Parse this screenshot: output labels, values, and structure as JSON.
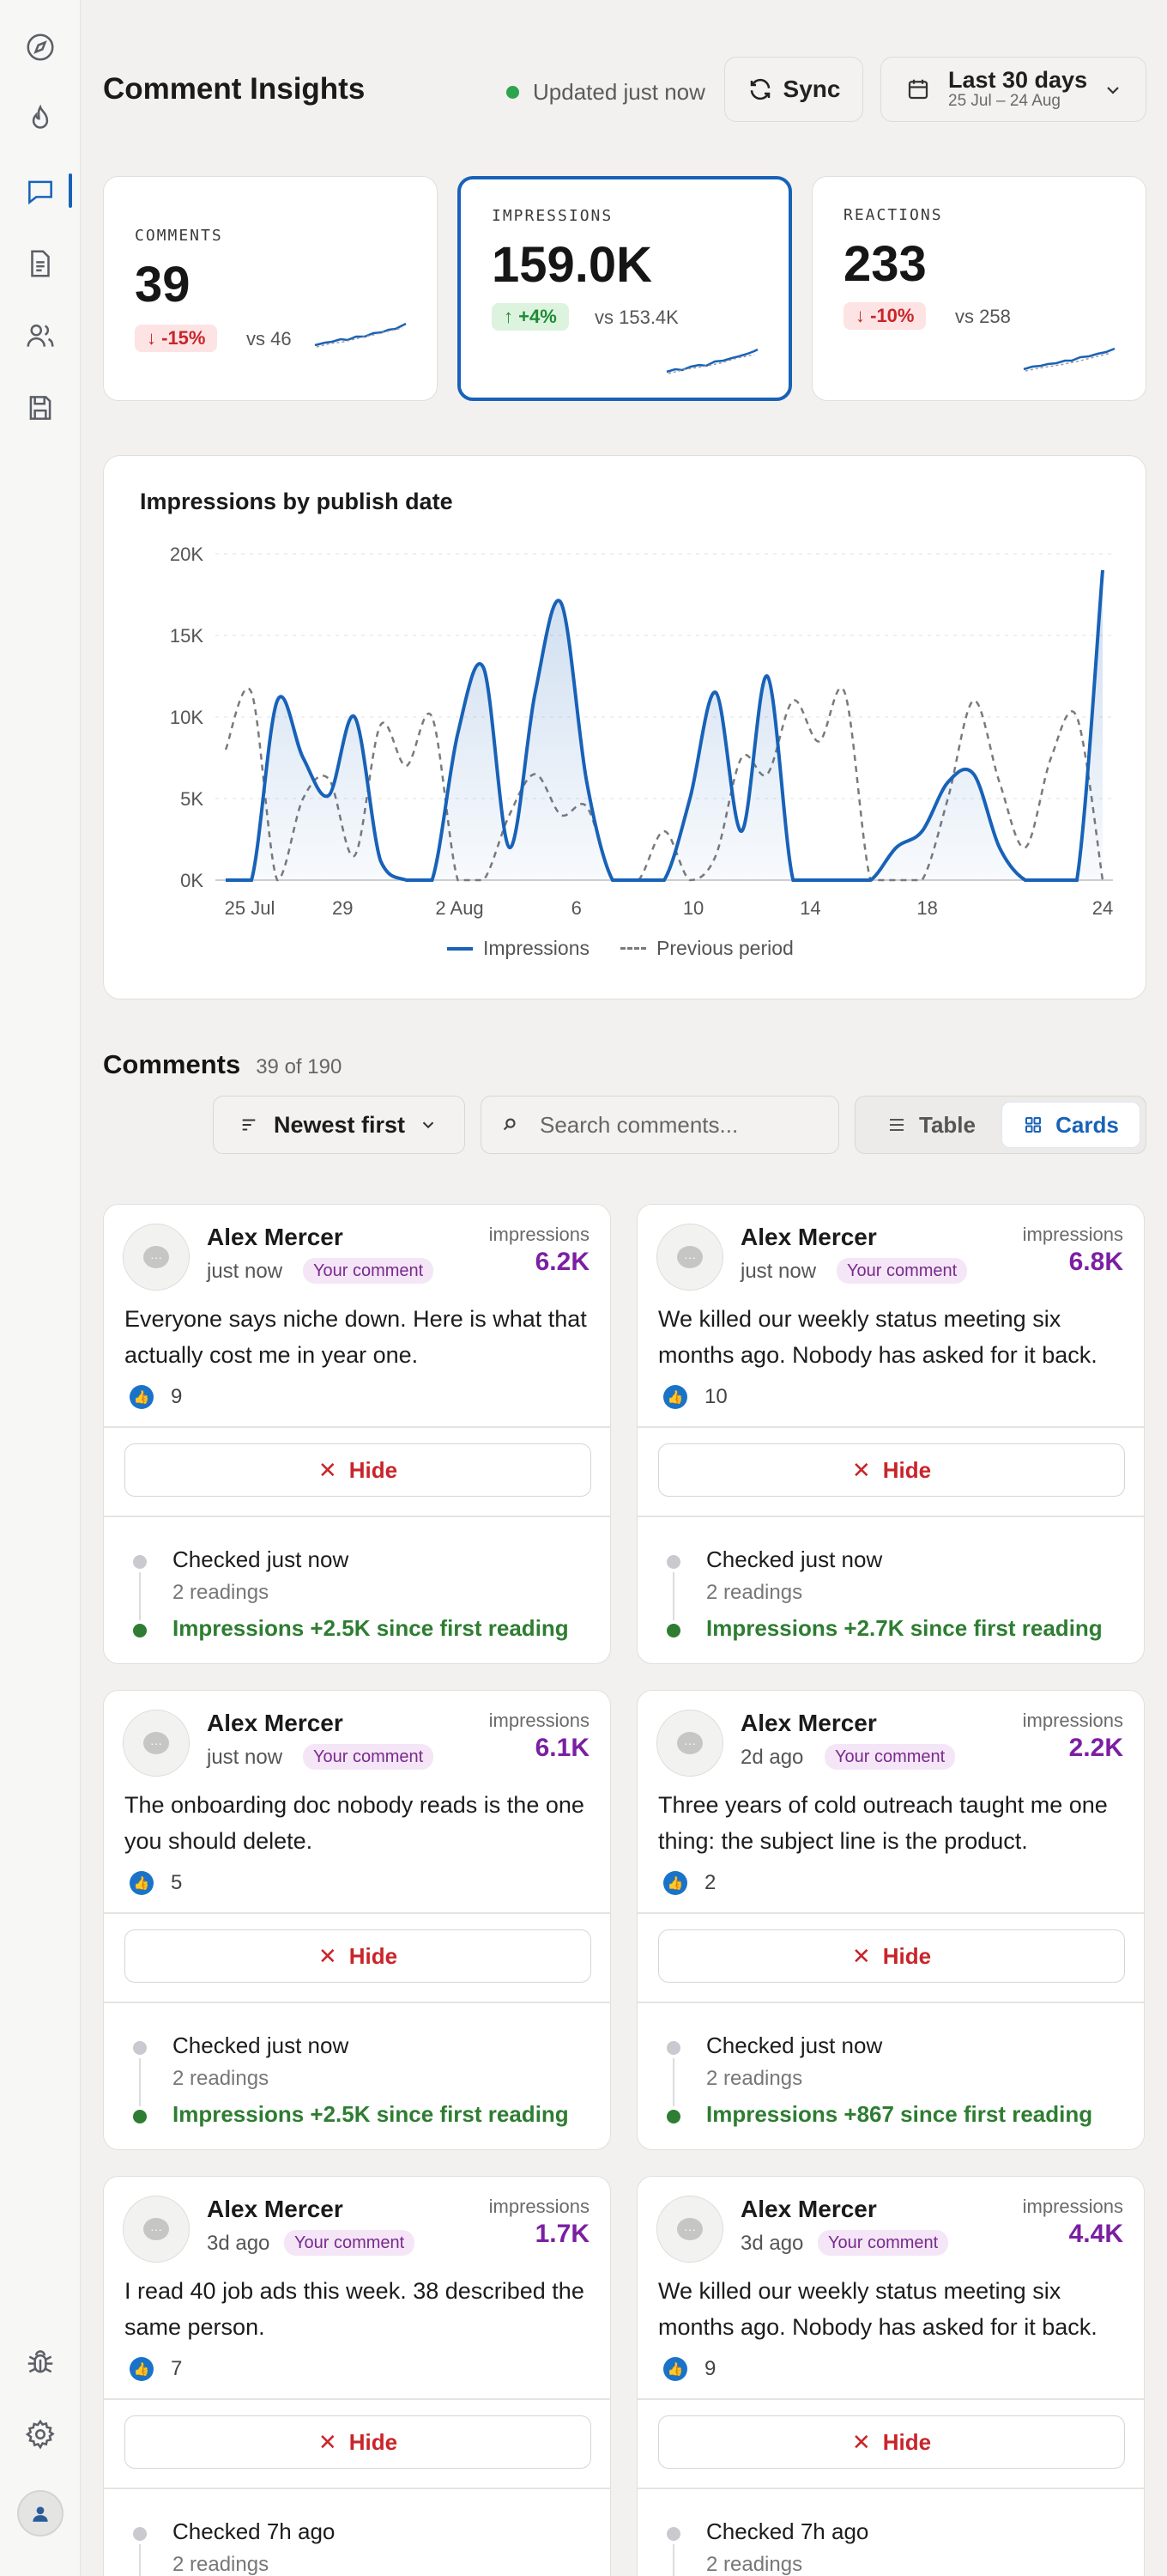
{
  "header": {
    "title": "Comment Insights",
    "status": "Updated just now",
    "sync_label": "Sync",
    "date_range": "Last 30 days",
    "date_sub": "25 Jul – 24 Aug"
  },
  "kpis": [
    {
      "label": "COMMENTS",
      "value": "39",
      "delta": "-15%",
      "direction": "down",
      "vs": "vs 46"
    },
    {
      "label": "IMPRESSIONS",
      "value": "159.0K",
      "delta": "+4%",
      "direction": "up",
      "vs": "vs 153.4K",
      "selected": true
    },
    {
      "label": "REACTIONS",
      "value": "233",
      "delta": "-10%",
      "direction": "down",
      "vs": "vs 258"
    }
  ],
  "chart_data": {
    "type": "area",
    "title": "Impressions by publish date",
    "y_ticks": [
      "0K",
      "5K",
      "10K",
      "15K",
      "20K"
    ],
    "x_ticks": [
      "25 Jul",
      "29",
      "2 Aug",
      "6",
      "10",
      "14",
      "18",
      "24"
    ],
    "ylim": [
      0,
      20000
    ],
    "grid": true,
    "legend_position": "bottom",
    "series": [
      {
        "name": "Impressions",
        "color": "#1862b8",
        "style": "solid-area",
        "values": [
          0,
          0,
          11000,
          7500,
          5200,
          10000,
          1200,
          0,
          0,
          9000,
          13000,
          2000,
          11500,
          17000,
          6000,
          0,
          0,
          0,
          5000,
          11500,
          3000,
          12500,
          0,
          0,
          0,
          0,
          2000,
          3000,
          6000,
          6500,
          2000,
          0,
          0,
          0,
          19000
        ]
      },
      {
        "name": "Previous period",
        "color": "#7a7a7a",
        "style": "dashed",
        "values": [
          8000,
          11500,
          0,
          5000,
          6200,
          1500,
          9500,
          7000,
          10000,
          0,
          0,
          4000,
          6500,
          4000,
          4500,
          0,
          0,
          3000,
          0,
          1500,
          7500,
          6500,
          11000,
          8500,
          11500,
          0,
          0,
          0,
          5000,
          11000,
          6000,
          2000,
          7500,
          10000,
          0
        ]
      }
    ]
  },
  "comments_section": {
    "title": "Comments",
    "count": "39 of 190",
    "sort_label": "Newest first",
    "search_placeholder": "Search comments...",
    "view_table": "Table",
    "view_cards": "Cards"
  },
  "cards": [
    {
      "name": "Alex Mercer",
      "time": "just now",
      "tag": "Your comment",
      "imp_label": "impressions",
      "imp": "6.2K",
      "text": "Everyone says niche down. Here is what that actually cost me in year one.",
      "reactions": "9",
      "hide": "Hide",
      "checked": "Checked just now",
      "readings": "2 readings",
      "gain": "Impressions +2.5K since first reading"
    },
    {
      "name": "Alex Mercer",
      "time": "just now",
      "tag": "Your comment",
      "imp_label": "impressions",
      "imp": "6.8K",
      "text": "We killed our weekly status meeting six months ago. Nobody has asked for it back.",
      "reactions": "10",
      "hide": "Hide",
      "checked": "Checked just now",
      "readings": "2 readings",
      "gain": "Impressions +2.7K since first reading"
    },
    {
      "name": "Alex Mercer",
      "time": "just now",
      "tag": "Your comment",
      "imp_label": "impressions",
      "imp": "6.1K",
      "text": "The onboarding doc nobody reads is the one you should delete.",
      "reactions": "5",
      "hide": "Hide",
      "checked": "Checked just now",
      "readings": "2 readings",
      "gain": "Impressions +2.5K since first reading"
    },
    {
      "name": "Alex Mercer",
      "time": "2d ago",
      "tag": "Your comment",
      "imp_label": "impressions",
      "imp": "2.2K",
      "text": "Three years of cold outreach taught me one thing: the subject line is the product.",
      "reactions": "2",
      "hide": "Hide",
      "checked": "Checked just now",
      "readings": "2 readings",
      "gain": "Impressions +867 since first reading"
    },
    {
      "name": "Alex Mercer",
      "time": "3d ago",
      "tag": "Your comment",
      "imp_label": "impressions",
      "imp": "1.7K",
      "text": "I read 40 job ads this week. 38 described the same person.",
      "reactions": "7",
      "hide": "Hide",
      "checked": "Checked 7h ago",
      "readings": "2 readings",
      "gain": ""
    },
    {
      "name": "Alex Mercer",
      "time": "3d ago",
      "tag": "Your comment",
      "imp_label": "impressions",
      "imp": "4.4K",
      "text": "We killed our weekly status meeting six months ago. Nobody has asked for it back.",
      "reactions": "9",
      "hide": "Hide",
      "checked": "Checked 7h ago",
      "readings": "2 readings",
      "gain": ""
    }
  ],
  "sidebar": {
    "items": [
      "compass-icon",
      "flame-icon",
      "comment-icon",
      "document-icon",
      "users-icon",
      "save-icon"
    ],
    "bottom": [
      "bug-icon",
      "gear-icon",
      "avatar"
    ]
  },
  "colors": {
    "accent": "#1862b8",
    "impressions_value": "#7b1fa2",
    "positive": "#2e7d32",
    "negative": "#c8252a"
  }
}
